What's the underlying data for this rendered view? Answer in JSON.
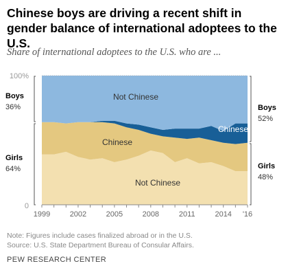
{
  "title": "Chinese boys are driving a recent shift in gender balance of international adoptees to the U.S.",
  "subtitle": "Share of international adoptees to the U.S. who are ...",
  "note": "Note: Figures include cases finalized abroad or in the U.S.",
  "source": "Source: U.S. State Department Bureau of Consular Affairs.",
  "footer": "PEW RESEARCH CENTER",
  "colors": {
    "girls_not_chinese": "#f3e0b0",
    "girls_chinese": "#e4c880",
    "boys_chinese": "#185f97",
    "boys_not_chinese": "#8db8df"
  },
  "chart_data": {
    "type": "area",
    "stacked": true,
    "ylim": [
      0,
      100
    ],
    "y_ticks": [
      "0",
      "100%"
    ],
    "x": [
      1999,
      2000,
      2001,
      2002,
      2003,
      2004,
      2005,
      2006,
      2007,
      2008,
      2009,
      2010,
      2011,
      2012,
      2013,
      2014,
      2015,
      2016
    ],
    "x_tick_labels": [
      "1999",
      "2002",
      "2005",
      "2008",
      "2011",
      "2014",
      "'16"
    ],
    "series": [
      {
        "key": "girls_not_chinese",
        "label": "Not Chinese",
        "values": [
          39,
          39,
          41,
          37,
          35,
          36,
          33,
          35,
          38,
          42,
          40,
          33,
          36,
          32,
          33,
          30,
          26,
          26
        ]
      },
      {
        "key": "girls_chinese",
        "label": "Chinese",
        "values": [
          25,
          25,
          22,
          27,
          29,
          28,
          30,
          25,
          20,
          13,
          13,
          19,
          15,
          20,
          17,
          18,
          21,
          22
        ]
      },
      {
        "key": "boys_chinese",
        "label": "Chinese",
        "values": [
          0,
          0,
          0,
          0,
          0,
          1,
          2,
          3,
          4,
          5,
          5,
          7,
          8,
          7,
          11,
          9,
          16,
          15
        ]
      },
      {
        "key": "boys_not_chinese",
        "label": "Not Chinese",
        "values": [
          36,
          36,
          37,
          36,
          36,
          35,
          35,
          37,
          38,
          40,
          42,
          41,
          41,
          41,
          39,
          43,
          37,
          37
        ]
      }
    ],
    "left_labels": {
      "boys": {
        "name": "Boys",
        "value": "36%"
      },
      "girls": {
        "name": "Girls",
        "value": "64%"
      }
    },
    "right_labels": {
      "boys": {
        "name": "Boys",
        "value": "52%"
      },
      "girls": {
        "name": "Girls",
        "value": "48%"
      }
    }
  }
}
